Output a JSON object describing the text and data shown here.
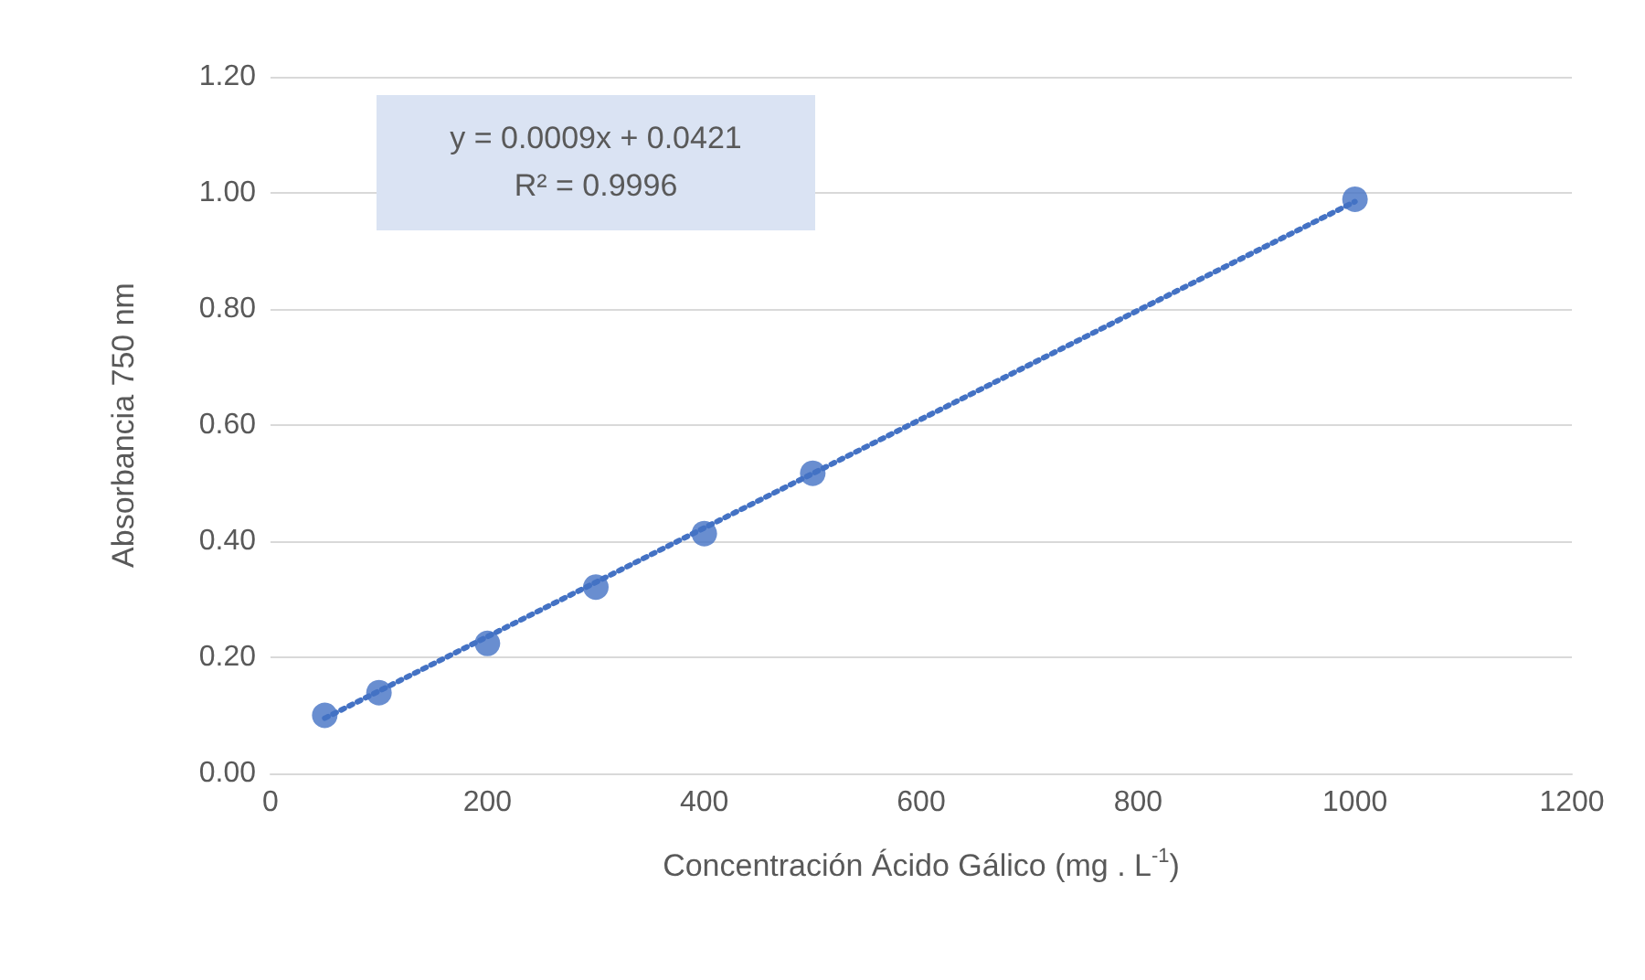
{
  "chart_data": {
    "type": "scatter",
    "xlabel": "Concentración Ácido Gálico (mg . L$^{-1}$)",
    "ylabel": "Absorbancia 750 nm",
    "annotations": [
      "y = 0.0009x + 0.0421",
      "R² = 0.9996"
    ],
    "series": [
      {
        "color": "#4472c4",
        "x": [
          50,
          100,
          200,
          300,
          400,
          500,
          1000
        ],
        "values": [
          0.1,
          0.139,
          0.224,
          0.321,
          0.413,
          0.517,
          0.989
        ],
        "marker": "circle"
      },
      {
        "type": "line",
        "color": "#4472c4",
        "x": [
          50,
          1000
        ],
        "values": [
          0.095,
          0.985
        ],
        "line_style": "dotted",
        "marker": "none"
      }
    ],
    "xlim": [
      0,
      1200
    ],
    "xticks": [
      0,
      200,
      400,
      600,
      800,
      1000,
      1200
    ],
    "ylim": [
      0,
      1.2
    ],
    "yticks": [
      {
        "value": 0,
        "label": "0.00"
      },
      {
        "value": 0.2,
        "label": "0.20"
      },
      {
        "value": 0.4,
        "label": "0.40"
      },
      {
        "value": 0.6,
        "label": "0.60"
      },
      {
        "value": 0.8,
        "label": "0.80"
      },
      {
        "value": 1,
        "label": "1.00"
      },
      {
        "value": 1.2,
        "label": "1.20"
      }
    ],
    "grid": "y"
  }
}
